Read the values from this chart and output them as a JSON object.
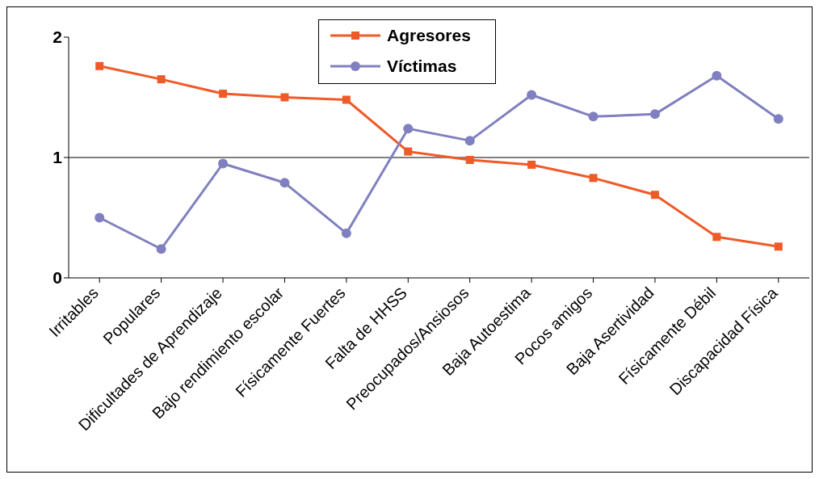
{
  "chart_data": {
    "type": "line",
    "categories": [
      "Irritables",
      "Populares",
      "Dificultades de Aprendizaje",
      "Bajo rendimiento escolar",
      "Físicamente Fuertes",
      "Falta de HHSS",
      "Preocupados/Ansiosos",
      "Baja Autoestima",
      "Pocos amigos",
      "Baja Asertividad",
      "Físicamente Débil",
      "Discapacidad Física"
    ],
    "series": [
      {
        "name": "Agresores",
        "color": "#f05a28",
        "marker": "square",
        "values": [
          1.76,
          1.65,
          1.53,
          1.5,
          1.48,
          1.05,
          0.98,
          0.94,
          0.83,
          0.69,
          0.34,
          0.26
        ]
      },
      {
        "name": "Víctimas",
        "color": "#8080c0",
        "marker": "circle",
        "values": [
          0.5,
          0.24,
          0.95,
          0.79,
          0.37,
          1.24,
          1.14,
          1.52,
          1.34,
          1.36,
          1.68,
          1.32
        ]
      }
    ],
    "ylim": [
      0,
      2
    ],
    "yticks": [
      0,
      1,
      2
    ],
    "grid": false,
    "legend": "top",
    "ref_lines": [
      {
        "axis": "y",
        "value": 1,
        "color": "#000000"
      }
    ]
  }
}
